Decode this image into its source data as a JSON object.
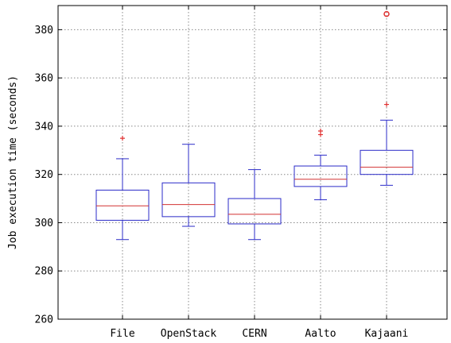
{
  "chart_data": {
    "type": "box",
    "title": "",
    "xlabel": "",
    "ylabel": "Job execution time (seconds)",
    "ylim": [
      260,
      390
    ],
    "y_ticks": [
      260,
      280,
      300,
      320,
      340,
      360,
      380
    ],
    "y_tick_labels": [
      "260",
      "280",
      "300",
      "320",
      "340",
      "360",
      "380"
    ],
    "grid": true,
    "categories": [
      "File",
      "OpenStack",
      "CERN",
      "Aalto",
      "Kajaani"
    ],
    "boxes": [
      {
        "label": "File",
        "whisker_low": 293,
        "q1": 301,
        "median": 307,
        "q3": 313.5,
        "whisker_high": 326.5,
        "outliers": [
          {
            "value": 335,
            "marker": "+"
          }
        ]
      },
      {
        "label": "OpenStack",
        "whisker_low": 298.5,
        "q1": 302.5,
        "median": 307.5,
        "q3": 316.5,
        "whisker_high": 332.5,
        "outliers": []
      },
      {
        "label": "CERN",
        "whisker_low": 293,
        "q1": 299.5,
        "median": 303.5,
        "q3": 310,
        "whisker_high": 322,
        "outliers": []
      },
      {
        "label": "Aalto",
        "whisker_low": 309.5,
        "q1": 315,
        "median": 318,
        "q3": 323.5,
        "whisker_high": 328,
        "outliers": [
          {
            "value": 336.5,
            "marker": "+"
          },
          {
            "value": 338,
            "marker": "+"
          }
        ]
      },
      {
        "label": "Kajaani",
        "whisker_low": 315.5,
        "q1": 320,
        "median": 323,
        "q3": 330,
        "whisker_high": 342.5,
        "outliers": [
          {
            "value": 349,
            "marker": "+"
          },
          {
            "value": 386.5,
            "marker": "o"
          }
        ]
      }
    ],
    "colors": {
      "box": "#2b2bc8",
      "median": "#d23232",
      "outlier": "#e03030",
      "grid": "#888888",
      "axis": "#000000"
    }
  }
}
